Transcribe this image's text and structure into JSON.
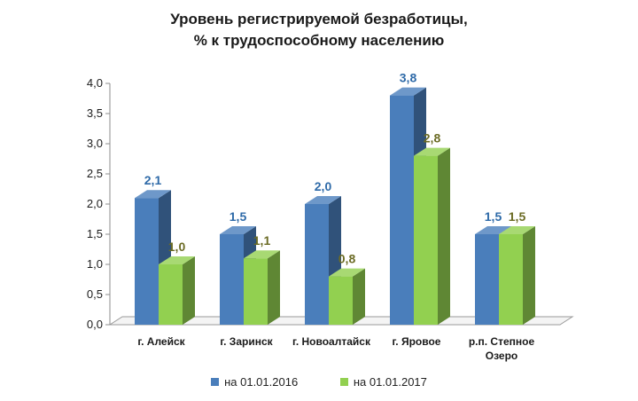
{
  "chart_data": {
    "type": "bar",
    "title": "Уровень регистрируемой безработицы,",
    "subtitle": "% к трудоспособному населению",
    "xlabel": "",
    "ylabel": "",
    "ylim": [
      0,
      4
    ],
    "yticks": [
      "0,0",
      "0,5",
      "1,0",
      "1,5",
      "2,0",
      "2,5",
      "3,0",
      "3,5",
      "4,0"
    ],
    "categories": [
      "г. Алейск",
      "г. Заринск",
      "г. Новоалтайск",
      "г. Яровое",
      "р.п. Степное Озеро"
    ],
    "category_lines": [
      [
        "г. Алейск"
      ],
      [
        "г. Заринск"
      ],
      [
        "г. Новоалтайск"
      ],
      [
        "г. Яровое"
      ],
      [
        "р.п. Степное",
        "Озеро"
      ]
    ],
    "series": [
      {
        "name": "на 01.01.2016",
        "values": [
          2.1,
          1.5,
          2.0,
          3.8,
          1.5
        ],
        "labels": [
          "2,1",
          "1,5",
          "2,0",
          "3,8",
          "1,5"
        ],
        "color": "#4a7ebb",
        "label_color": "#2e6aa8"
      },
      {
        "name": "на 01.01.2017",
        "values": [
          1.0,
          1.1,
          0.8,
          2.8,
          1.5
        ],
        "labels": [
          "1,0",
          "1,1",
          "0,8",
          "2,8",
          "1,5"
        ],
        "color": "#92d050",
        "label_color": "#6b6b24"
      }
    ],
    "grid": false,
    "legend_position": "bottom"
  }
}
